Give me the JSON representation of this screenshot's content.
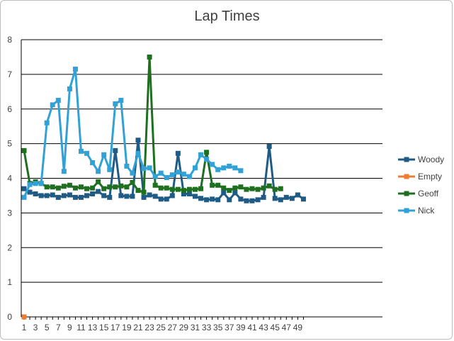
{
  "chart_data": {
    "type": "line",
    "title": "Lap Times",
    "xlabel": "",
    "ylabel": "",
    "ylim": [
      0,
      8
    ],
    "yticks": [
      "0",
      "1",
      "2",
      "3",
      "4",
      "5",
      "6",
      "7",
      "8"
    ],
    "xlim": [
      1,
      50
    ],
    "xticks": [
      "1",
      "3",
      "5",
      "7",
      "9",
      "11",
      "13",
      "15",
      "17",
      "19",
      "21",
      "23",
      "25",
      "27",
      "29",
      "31",
      "33",
      "35",
      "37",
      "39",
      "41",
      "43",
      "45",
      "47",
      "49"
    ],
    "grid": "horizontal",
    "legend_position": "right",
    "series": [
      {
        "name": "Woody",
        "color": "#1f5b85",
        "values": [
          3.7,
          3.6,
          3.55,
          3.5,
          3.5,
          3.52,
          3.45,
          3.5,
          3.52,
          3.45,
          3.45,
          3.5,
          3.55,
          3.62,
          3.5,
          3.45,
          4.8,
          3.5,
          3.48,
          3.48,
          5.1,
          3.45,
          3.52,
          3.48,
          3.4,
          3.4,
          3.5,
          4.72,
          3.55,
          3.55,
          3.48,
          3.42,
          3.38,
          3.4,
          3.38,
          3.58,
          3.38,
          3.58,
          3.4,
          3.35,
          3.35,
          3.38,
          3.45,
          4.92,
          3.42,
          3.38,
          3.45,
          3.42,
          3.52,
          3.4
        ]
      },
      {
        "name": "Empty",
        "color": "#ed7d31",
        "values": [
          0
        ]
      },
      {
        "name": "Geoff",
        "color": "#1e6f20",
        "values": [
          4.8,
          3.85,
          3.9,
          3.85,
          3.75,
          3.75,
          3.72,
          3.77,
          3.8,
          3.72,
          3.75,
          3.7,
          3.72,
          3.9,
          3.7,
          3.75,
          3.75,
          3.78,
          3.75,
          3.88,
          3.65,
          3.6,
          7.5,
          3.8,
          3.72,
          3.72,
          3.68,
          3.68,
          3.65,
          3.68,
          3.68,
          3.7,
          4.75,
          3.8,
          3.8,
          3.72,
          3.65,
          3.72,
          3.75,
          3.68,
          3.7,
          3.68,
          3.72,
          3.78,
          3.68,
          3.7
        ]
      },
      {
        "name": "Nick",
        "color": "#32a1d6",
        "values": [
          3.45,
          3.82,
          3.85,
          3.85,
          5.6,
          6.12,
          6.25,
          4.2,
          6.58,
          7.15,
          4.78,
          4.72,
          4.45,
          4.2,
          4.68,
          4.25,
          6.15,
          6.25,
          4.35,
          4.15,
          4.72,
          4.28,
          4.3,
          4.05,
          4.15,
          4.02,
          4.1,
          4.18,
          4.12,
          4.05,
          4.3,
          4.68,
          4.55,
          4.4,
          4.25,
          4.3,
          4.35,
          4.3,
          4.22
        ]
      }
    ]
  }
}
